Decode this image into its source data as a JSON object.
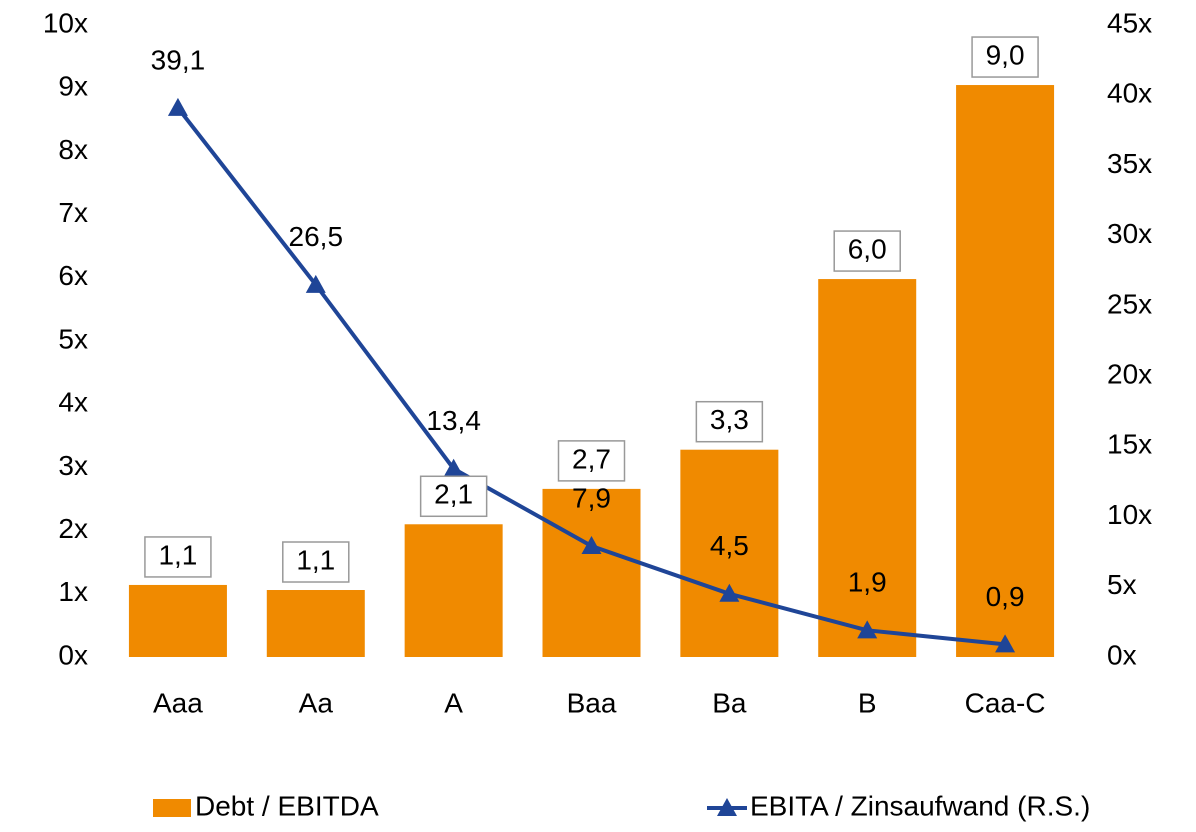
{
  "chart_data": {
    "type": "bar",
    "categories": [
      "Aaa",
      "Aa",
      "A",
      "Baa",
      "Ba",
      "B",
      "Caa-C"
    ],
    "series": [
      {
        "name": "Debt / EBITDA",
        "type": "bar",
        "color": "#f08a00",
        "axis": "y",
        "values": [
          1.14,
          1.06,
          2.1,
          2.66,
          3.28,
          5.98,
          9.05
        ],
        "value_labels": [
          "1,1",
          "1,1",
          "2,1",
          "2,7",
          "3,3",
          "6,0",
          "9,0"
        ]
      },
      {
        "name": "EBITA / Zinsaufwand (R.S.)",
        "type": "line",
        "color": "#1f4597",
        "axis": "y2",
        "values": [
          39.1,
          26.5,
          13.4,
          7.9,
          4.5,
          1.9,
          0.9
        ],
        "value_labels": [
          "39,1",
          "26,5",
          "13,4",
          "7,9",
          "4,5",
          "1,9",
          "0,9"
        ]
      }
    ],
    "ylim": [
      0,
      10
    ],
    "yticks": [
      {
        "value": 0,
        "label": "0x"
      },
      {
        "value": 1,
        "label": "1x"
      },
      {
        "value": 2,
        "label": "2x"
      },
      {
        "value": 3,
        "label": "3x"
      },
      {
        "value": 4,
        "label": "4x"
      },
      {
        "value": 5,
        "label": "5x"
      },
      {
        "value": 6,
        "label": "6x"
      },
      {
        "value": 7,
        "label": "7x"
      },
      {
        "value": 8,
        "label": "8x"
      },
      {
        "value": 9,
        "label": "9x"
      },
      {
        "value": 10,
        "label": "10x"
      }
    ],
    "y2lim": [
      0,
      45
    ],
    "y2ticks": [
      {
        "value": 0,
        "label": "0x"
      },
      {
        "value": 5,
        "label": "5x"
      },
      {
        "value": 10,
        "label": "10x"
      },
      {
        "value": 15,
        "label": "15x"
      },
      {
        "value": 20,
        "label": "20x"
      },
      {
        "value": 25,
        "label": "25x"
      },
      {
        "value": 30,
        "label": "30x"
      },
      {
        "value": 35,
        "label": "35x"
      },
      {
        "value": 40,
        "label": "40x"
      },
      {
        "value": 45,
        "label": "45x"
      }
    ],
    "grid": false,
    "legend": "bottom"
  }
}
